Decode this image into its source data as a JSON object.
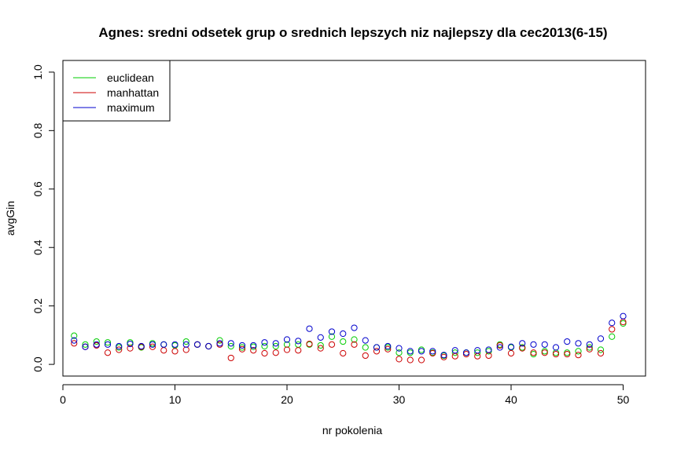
{
  "chart_data": {
    "type": "scatter",
    "title": "Agnes: sredni odsetek grup o srednich lepszych niz najlepszy dla cec2013(6-15)",
    "xlabel": "nr pokolenia",
    "ylabel": "avgGin",
    "xlim": [
      0,
      52
    ],
    "ylim": [
      -0.04,
      1.04
    ],
    "x_ticks": [
      0,
      10,
      20,
      30,
      40,
      50
    ],
    "y_ticks": [
      0.0,
      0.2,
      0.4,
      0.6,
      0.8,
      1.0
    ],
    "x_tick_labels": [
      "0",
      "10",
      "20",
      "30",
      "40",
      "50"
    ],
    "y_tick_labels": [
      "0.0",
      "0.2",
      "0.4",
      "0.6",
      "0.8",
      "1.0"
    ],
    "legend_position": "top-left",
    "grid": false,
    "marker": "open-circle",
    "x": [
      1,
      2,
      3,
      4,
      5,
      6,
      7,
      8,
      9,
      10,
      11,
      12,
      13,
      14,
      15,
      16,
      17,
      18,
      19,
      20,
      21,
      22,
      23,
      24,
      25,
      26,
      27,
      28,
      29,
      30,
      31,
      32,
      33,
      34,
      35,
      36,
      37,
      38,
      39,
      40,
      41,
      42,
      43,
      44,
      45,
      46,
      47,
      48,
      49,
      50
    ],
    "series": [
      {
        "name": "euclidean",
        "color": "#00cc00",
        "values": [
          0.098,
          0.068,
          0.078,
          0.075,
          0.058,
          0.075,
          0.058,
          0.072,
          0.068,
          0.065,
          0.078,
          0.068,
          0.062,
          0.082,
          0.062,
          0.058,
          0.06,
          0.062,
          0.062,
          0.068,
          0.068,
          0.068,
          0.065,
          0.095,
          0.078,
          0.085,
          0.058,
          0.058,
          0.058,
          0.04,
          0.04,
          0.05,
          0.04,
          0.03,
          0.04,
          0.04,
          0.04,
          0.045,
          0.068,
          0.058,
          0.058,
          0.035,
          0.045,
          0.04,
          0.04,
          0.045,
          0.058,
          0.05,
          0.095,
          0.14
        ]
      },
      {
        "name": "manhattan",
        "color": "#cc0000",
        "values": [
          0.072,
          0.06,
          0.065,
          0.04,
          0.05,
          0.055,
          0.06,
          0.06,
          0.048,
          0.045,
          0.05,
          0.068,
          0.062,
          0.068,
          0.022,
          0.052,
          0.048,
          0.038,
          0.04,
          0.05,
          0.048,
          0.07,
          0.055,
          0.068,
          0.038,
          0.068,
          0.03,
          0.045,
          0.052,
          0.018,
          0.015,
          0.015,
          0.038,
          0.025,
          0.028,
          0.035,
          0.028,
          0.03,
          0.065,
          0.038,
          0.055,
          0.04,
          0.04,
          0.035,
          0.035,
          0.032,
          0.052,
          0.038,
          0.12,
          0.145
        ]
      },
      {
        "name": "maximum",
        "color": "#0000cc",
        "values": [
          0.082,
          0.06,
          0.068,
          0.068,
          0.062,
          0.07,
          0.062,
          0.068,
          0.068,
          0.068,
          0.068,
          0.068,
          0.062,
          0.072,
          0.072,
          0.065,
          0.065,
          0.075,
          0.072,
          0.085,
          0.08,
          0.122,
          0.092,
          0.112,
          0.105,
          0.125,
          0.082,
          0.058,
          0.062,
          0.055,
          0.045,
          0.045,
          0.045,
          0.032,
          0.048,
          0.04,
          0.048,
          0.05,
          0.058,
          0.06,
          0.072,
          0.068,
          0.068,
          0.058,
          0.078,
          0.072,
          0.068,
          0.088,
          0.142,
          0.165
        ]
      }
    ]
  }
}
